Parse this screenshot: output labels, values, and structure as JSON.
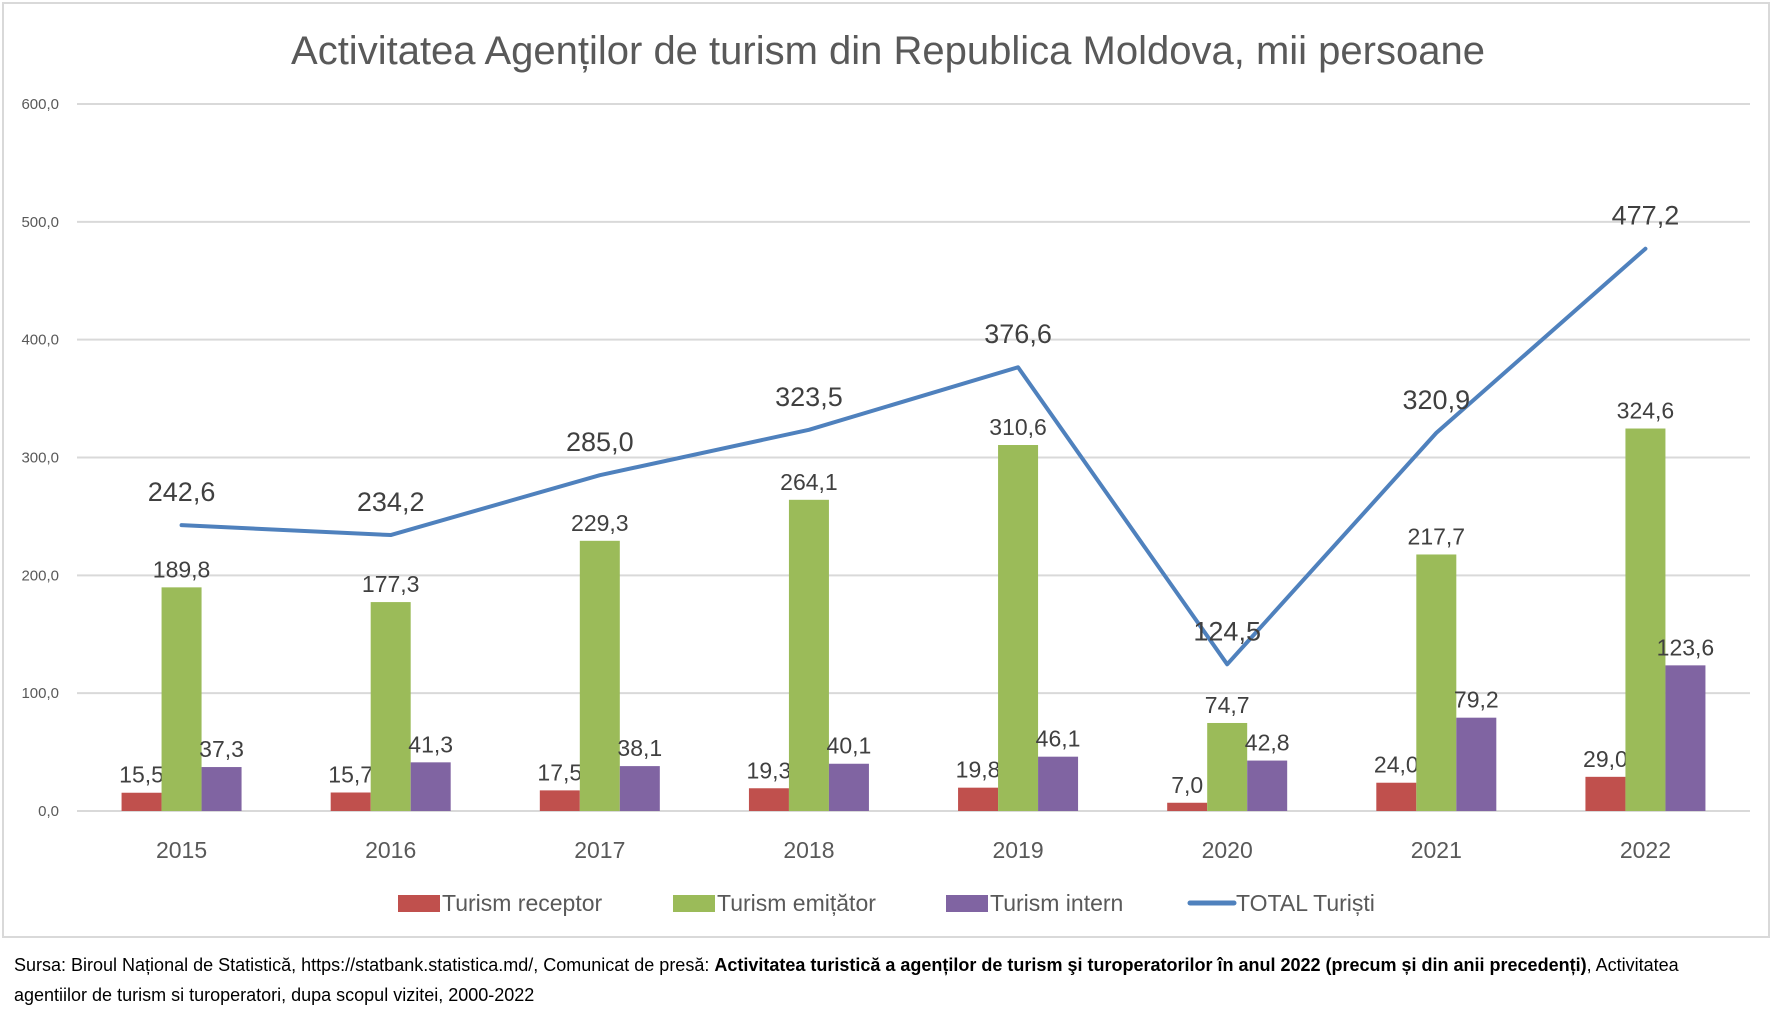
{
  "chart_data": {
    "type": "bar+line",
    "title": "Activitatea Agenților de turism din Republica Moldova, mii persoane",
    "categories": [
      "2015",
      "2016",
      "2017",
      "2018",
      "2019",
      "2020",
      "2021",
      "2022"
    ],
    "ylim": [
      0,
      600
    ],
    "yticks": [
      0,
      100,
      200,
      300,
      400,
      500,
      600
    ],
    "ytick_labels": [
      "0,0",
      "100,0",
      "200,0",
      "300,0",
      "400,0",
      "500,0",
      "600,0"
    ],
    "grid": true,
    "legend_position": "bottom",
    "series": [
      {
        "name": "Turism receptor",
        "type": "bar",
        "color": "#C0504D",
        "values": [
          15.5,
          15.7,
          17.5,
          19.3,
          19.8,
          7.0,
          24.0,
          29.0
        ],
        "labels": [
          "15,5",
          "15,7",
          "17,5",
          "19,3",
          "19,8",
          "7,0",
          "24,0",
          "29,0"
        ]
      },
      {
        "name": "Turism emițător",
        "type": "bar",
        "color": "#9BBB59",
        "values": [
          189.8,
          177.3,
          229.3,
          264.1,
          310.6,
          74.7,
          217.7,
          324.6
        ],
        "labels": [
          "189,8",
          "177,3",
          "229,3",
          "264,1",
          "310,6",
          "74,7",
          "217,7",
          "324,6"
        ]
      },
      {
        "name": "Turism intern",
        "type": "bar",
        "color": "#8064A2",
        "values": [
          37.3,
          41.3,
          38.1,
          40.1,
          46.1,
          42.8,
          79.2,
          123.6
        ],
        "labels": [
          "37,3",
          "41,3",
          "38,1",
          "40,1",
          "46,1",
          "42,8",
          "79,2",
          "123,6"
        ]
      },
      {
        "name": "TOTAL Turiști",
        "type": "line",
        "color": "#4F81BD",
        "values": [
          242.6,
          234.2,
          285.0,
          323.5,
          376.6,
          124.5,
          320.9,
          477.2
        ],
        "labels": [
          "242,6",
          "234,2",
          "285,0",
          "323,5",
          "376,6",
          "124,5",
          "320,9",
          "477,2"
        ]
      }
    ]
  },
  "footer": {
    "prefix": "Sursa: Biroul Național de Statistică, https://statbank.statistica.md/, Comunicat de presă: ",
    "bold": "Activitatea turistică a agenților de turism şi turoperatorilor în anul 2022 (precum și din anii precedenți)",
    "suffix": ", Activitatea agentiilor de turism si turoperatori, dupa scopul vizitei, 2000-2022"
  }
}
